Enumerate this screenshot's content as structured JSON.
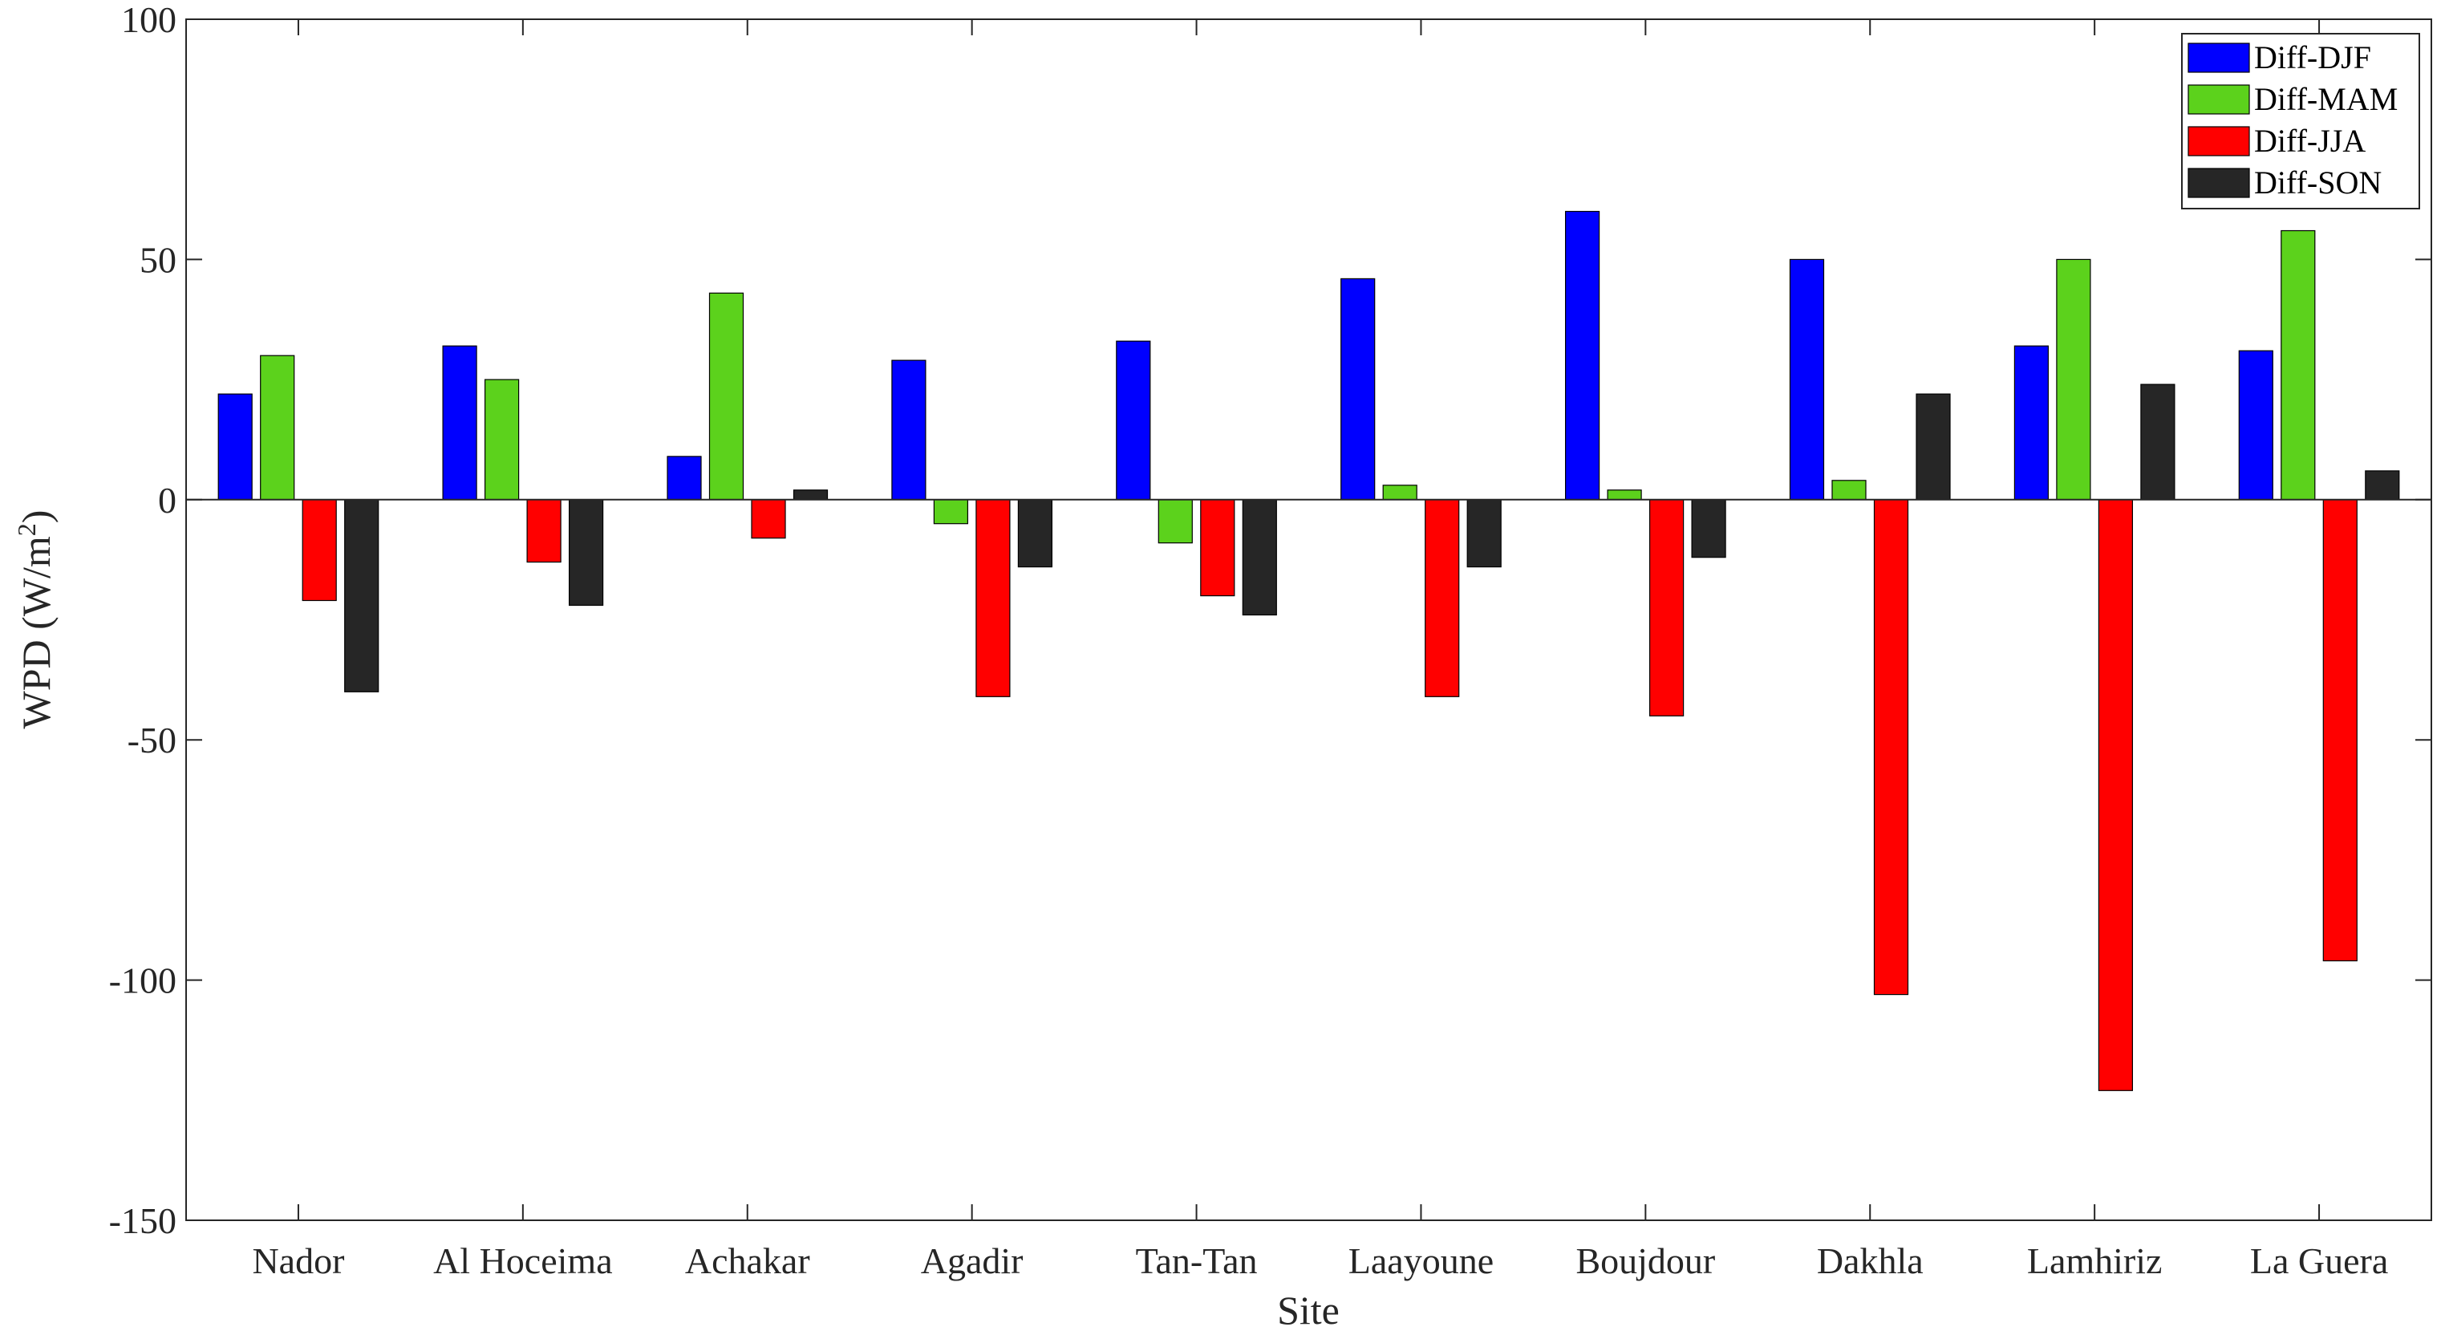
{
  "chart_data": {
    "type": "bar",
    "categories": [
      "Nador",
      "Al Hoceima",
      "Achakar",
      "Agadir",
      "Tan-Tan",
      "Laayoune",
      "Boujdour",
      "Dakhla",
      "Lamhiriz",
      "La Guera"
    ],
    "series": [
      {
        "name": "Diff-DJF",
        "color": "#0000ff",
        "values": [
          22,
          32,
          9,
          29,
          33,
          46,
          60,
          50,
          32,
          31
        ]
      },
      {
        "name": "Diff-MAM",
        "color": "#5cd21c",
        "values": [
          30,
          25,
          43,
          -5,
          -9,
          3,
          2,
          4,
          50,
          56
        ]
      },
      {
        "name": "Diff-JJA",
        "color": "#ff0000",
        "values": [
          -21,
          -13,
          -8,
          -41,
          -20,
          -41,
          -45,
          -103,
          -123,
          -96
        ]
      },
      {
        "name": "Diff-SON",
        "color": "#262626",
        "values": [
          -40,
          -22,
          2,
          -14,
          -24,
          -14,
          -12,
          22,
          24,
          6
        ]
      }
    ],
    "xlabel": "Site",
    "ylabel_main": "WPD (W/m",
    "ylabel_sup": "2",
    "ylabel_close": ")",
    "ylim": [
      -150,
      100
    ],
    "yticks": [
      -150,
      -100,
      -50,
      0,
      50,
      100
    ],
    "ytick_labels": [
      "-150",
      "-100",
      "-50",
      "0",
      "50",
      "100"
    ],
    "grid": false,
    "legend_position": "top-right"
  }
}
